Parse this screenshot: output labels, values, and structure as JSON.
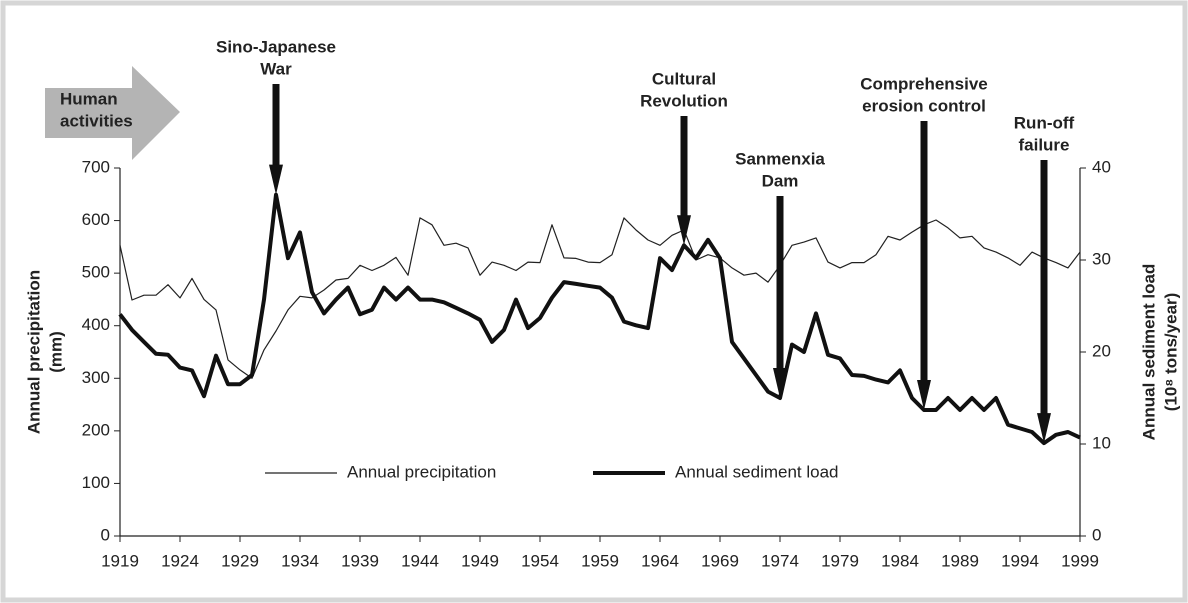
{
  "chart_data": {
    "type": "line",
    "x": [
      1919,
      1920,
      1921,
      1922,
      1923,
      1924,
      1925,
      1926,
      1927,
      1928,
      1929,
      1930,
      1931,
      1932,
      1933,
      1934,
      1935,
      1936,
      1937,
      1938,
      1939,
      1940,
      1941,
      1942,
      1943,
      1944,
      1945,
      1946,
      1947,
      1948,
      1949,
      1950,
      1951,
      1952,
      1953,
      1954,
      1955,
      1956,
      1957,
      1958,
      1959,
      1960,
      1961,
      1962,
      1963,
      1964,
      1965,
      1966,
      1967,
      1968,
      1969,
      1970,
      1971,
      1972,
      1973,
      1974,
      1975,
      1976,
      1977,
      1978,
      1979,
      1980,
      1981,
      1982,
      1983,
      1984,
      1985,
      1986,
      1987,
      1988,
      1989,
      1990,
      1991,
      1992,
      1993,
      1994,
      1995,
      1996,
      1997,
      1998,
      1999
    ],
    "xlim": [
      1919,
      1999
    ],
    "xticks": [
      1919,
      1924,
      1929,
      1934,
      1939,
      1944,
      1949,
      1954,
      1959,
      1964,
      1969,
      1974,
      1979,
      1984,
      1989,
      1994,
      1999
    ],
    "ylim": [
      0,
      700
    ],
    "yticks": [
      0,
      100,
      200,
      300,
      400,
      500,
      600,
      700
    ],
    "y2lim": [
      0,
      40
    ],
    "y2ticks": [
      0,
      10,
      20,
      30,
      40
    ],
    "ylabel": [
      "Annual precipitation",
      "(mm)"
    ],
    "y2label": [
      "Annual sediment load",
      "(10⁸ tons/year)"
    ],
    "series": [
      {
        "name": "Annual precipitation",
        "color": "#222222",
        "width": 1.2,
        "values": [
          553,
          449,
          458,
          458,
          478,
          453,
          490,
          450,
          430,
          335,
          316,
          300,
          354,
          390,
          430,
          456,
          453,
          468,
          487,
          490,
          515,
          505,
          515,
          530,
          496,
          605,
          592,
          553,
          557,
          548,
          496,
          521,
          515,
          505,
          521,
          520,
          592,
          529,
          528,
          521,
          520,
          535,
          605,
          582,
          563,
          553,
          572,
          582,
          525,
          535,
          529,
          510,
          496,
          500,
          483,
          515,
          553,
          559,
          567,
          521,
          510,
          520,
          520,
          535,
          570,
          563,
          578,
          592,
          601,
          586,
          567,
          570,
          548,
          540,
          529,
          515,
          540,
          529,
          520,
          510,
          540
        ]
      },
      {
        "name": "Annual sediment load",
        "color": "#111111",
        "width": 4,
        "axis": "y2",
        "values": [
          24.1,
          22.4,
          21.1,
          19.8,
          19.7,
          18.3,
          18.0,
          15.2,
          19.6,
          16.5,
          16.5,
          17.5,
          25.7,
          37.1,
          30.2,
          33.0,
          26.5,
          24.2,
          25.7,
          27.0,
          24.1,
          24.6,
          27.0,
          25.7,
          27.0,
          25.7,
          25.7,
          25.4,
          24.8,
          24.2,
          23.5,
          21.1,
          22.4,
          25.7,
          22.6,
          23.7,
          25.9,
          27.6,
          27.4,
          27.2,
          27.0,
          25.9,
          23.3,
          22.9,
          22.6,
          30.2,
          28.9,
          31.6,
          30.2,
          32.2,
          30.2,
          21.1,
          19.3,
          17.5,
          15.7,
          15.0,
          20.8,
          20.0,
          24.2,
          19.7,
          19.3,
          17.5,
          17.4,
          17.0,
          16.7,
          18.0,
          15.0,
          13.7,
          13.7,
          15.0,
          13.7,
          15.0,
          13.7,
          15.0,
          12.1,
          11.7,
          11.3,
          10.1,
          11.0,
          11.3,
          10.7
        ]
      }
    ],
    "side_label": [
      "Human",
      "activities"
    ],
    "annotations": [
      {
        "lines": [
          "Sino-Japanese",
          "War"
        ],
        "x": 1932
      },
      {
        "lines": [
          "Cultural",
          "Revolution"
        ],
        "x": 1966
      },
      {
        "lines": [
          "Sanmenxia",
          "Dam"
        ],
        "x": 1974
      },
      {
        "lines": [
          "Comprehensive",
          "erosion control"
        ],
        "x": 1986
      },
      {
        "lines": [
          "Run-off",
          "failure"
        ],
        "x": 1996
      }
    ]
  }
}
